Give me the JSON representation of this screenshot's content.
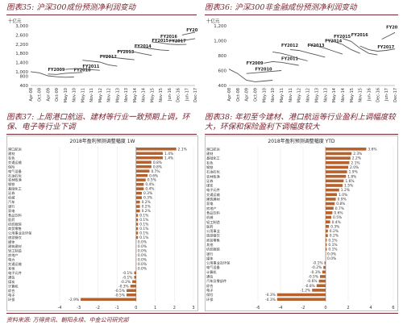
{
  "captions": {
    "c35": "图表35: 沪深300成份预测净利润变动",
    "c36": "图表36: 沪深300非金融成份预测净利润变动",
    "c37": "图表37: 上周港口航运、建材等行业一致预期上调，环保、电子等行业下调",
    "c38": "图表38: 年初至今建材、港口航运等行业盈利上调幅度较大，环保和保险盈利下调幅度较大"
  },
  "source": "资料来源: 万得资讯、朝阳永续、中金公司研究部",
  "colors": {
    "line": "#555555",
    "bar": "#b5622e",
    "caption": "#7a2430"
  },
  "chart_data": [
    {
      "type": "line",
      "unit_label": "十亿元",
      "ylim": [
        400,
        3000
      ],
      "yticks": [
        400,
        800,
        1000,
        1400,
        1800,
        2200,
        2600,
        3000
      ],
      "ytick_labels": [
        "400",
        "800",
        "1,000",
        "1,400",
        "1,800",
        "2,200",
        "2,600",
        "3,000"
      ],
      "xtick_labels": [
        "Apr-08",
        "Oct-08",
        "Apr-09",
        "Oct-09",
        "May-10",
        "Nov-10",
        "May-11",
        "Nov-11",
        "May-12",
        "Nov-12",
        "May-13",
        "Nov-13",
        "May-14",
        "Nov-14",
        "May-15",
        "Nov-15",
        "Jun-16",
        "Dec-16",
        "Jun-17",
        "Dec-17"
      ],
      "series": [
        {
          "name": "FY2009",
          "label_at": [
            2,
            1040
          ],
          "points": [
            [
              0,
              1000
            ],
            [
              1,
              950
            ],
            [
              2,
              820
            ],
            [
              3,
              780
            ],
            [
              4,
              760
            ],
            [
              5,
              770
            ]
          ]
        },
        {
          "name": "FY2010",
          "label_at": [
            5,
            1010
          ],
          "points": [
            [
              2,
              900
            ],
            [
              3,
              880
            ],
            [
              4,
              930
            ],
            [
              5,
              950
            ],
            [
              6,
              970
            ]
          ]
        },
        {
          "name": "FY2011",
          "label_at": [
            6,
            1180
          ],
          "points": [
            [
              4,
              1100
            ],
            [
              5,
              1130
            ],
            [
              6,
              1120
            ],
            [
              7,
              1090
            ],
            [
              8,
              1060
            ]
          ]
        },
        {
          "name": "FY2012",
          "label_at": [
            8,
            1600
          ],
          "points": [
            [
              6,
              1500
            ],
            [
              7,
              1460
            ],
            [
              8,
              1420
            ],
            [
              9,
              1300
            ],
            [
              10,
              1240
            ]
          ]
        },
        {
          "name": "FY2013",
          "label_at": [
            10,
            1800
          ],
          "points": [
            [
              8,
              1680
            ],
            [
              9,
              1660
            ],
            [
              10,
              1600
            ],
            [
              11,
              1560
            ],
            [
              12,
              1520
            ]
          ]
        },
        {
          "name": "FY2014",
          "label_at": [
            12,
            2050
          ],
          "points": [
            [
              10,
              1900
            ],
            [
              11,
              1920
            ],
            [
              12,
              1860
            ],
            [
              13,
              1780
            ],
            [
              14,
              1710
            ]
          ]
        },
        {
          "name": "FY2015",
          "label_at": [
            14,
            2300
          ],
          "points": [
            [
              12,
              2060
            ],
            [
              13,
              2050
            ],
            [
              14,
              2000
            ],
            [
              15,
              1950
            ],
            [
              16,
              1920
            ]
          ]
        },
        {
          "name": "FY2016",
          "label_at": [
            15,
            2480
          ],
          "points": [
            [
              14,
              2300
            ],
            [
              15,
              2260
            ],
            [
              16,
              2200
            ],
            [
              17,
              2180
            ],
            [
              18,
              2190
            ]
          ]
        },
        {
          "name": "FY2017",
          "label_at": [
            16,
            2280
          ],
          "points": [
            [
              16,
              2350
            ],
            [
              17,
              2330
            ],
            [
              18,
              2380
            ],
            [
              19,
              2440
            ]
          ]
        },
        {
          "name": "FY2018",
          "label_at": [
            18,
            2750
          ],
          "points": [
            [
              17.5,
              2600
            ],
            [
              18.5,
              2680
            ],
            [
              19,
              2720
            ]
          ]
        }
      ]
    },
    {
      "type": "line",
      "unit_label": "十亿元",
      "ylim": [
        400,
        1200
      ],
      "yticks": [
        400,
        600,
        800,
        1000,
        1200
      ],
      "ytick_labels": [
        "400",
        "600",
        "800",
        "1,000",
        "1,200"
      ],
      "xtick_labels": [
        "Apr-08",
        "Oct-08",
        "Apr-09",
        "Oct-09",
        "May-10",
        "Nov-10",
        "May-11",
        "Nov-11",
        "May-12",
        "Nov-12",
        "May-13",
        "Nov-13",
        "May-14",
        "Nov-14",
        "May-15",
        "Nov-15",
        "Jun-16",
        "Dec-16",
        "Jun-17",
        "Dec-17"
      ],
      "series": [
        {
          "name": "FY2009",
          "label_at": [
            2,
            680
          ],
          "points": [
            [
              0,
              620
            ],
            [
              1,
              560
            ],
            [
              2,
              470
            ],
            [
              3,
              450
            ],
            [
              4,
              460
            ],
            [
              5,
              470
            ]
          ]
        },
        {
          "name": "FY2010",
          "label_at": [
            3,
            600
          ],
          "points": [
            [
              2,
              560
            ],
            [
              3,
              570
            ],
            [
              4,
              580
            ],
            [
              5,
              590
            ],
            [
              6,
              600
            ]
          ]
        },
        {
          "name": "FY2011",
          "label_at": [
            6,
            740
          ],
          "points": [
            [
              4,
              700
            ],
            [
              5,
              720
            ],
            [
              6,
              710
            ],
            [
              7,
              690
            ],
            [
              8,
              670
            ]
          ]
        },
        {
          "name": "FY2012",
          "label_at": [
            6,
            920
          ],
          "points": [
            [
              5,
              850
            ],
            [
              6,
              830
            ],
            [
              7,
              800
            ],
            [
              8,
              760
            ],
            [
              9,
              730
            ]
          ]
        },
        {
          "name": "FY2013",
          "label_at": [
            9,
            920
          ],
          "points": [
            [
              7,
              880
            ],
            [
              8,
              870
            ],
            [
              9,
              840
            ],
            [
              10,
              810
            ],
            [
              11,
              780
            ]
          ]
        },
        {
          "name": "FY2014",
          "label_at": [
            11,
            980
          ],
          "points": [
            [
              9,
              940
            ],
            [
              10,
              930
            ],
            [
              11,
              900
            ],
            [
              12,
              860
            ],
            [
              13,
              820
            ]
          ]
        },
        {
          "name": "FY2015",
          "label_at": [
            12,
            1040
          ],
          "points": [
            [
              11,
              1010
            ],
            [
              12,
              990
            ],
            [
              13,
              950
            ],
            [
              14,
              880
            ],
            [
              15,
              830
            ]
          ]
        },
        {
          "name": "FY2016",
          "label_at": [
            14,
            1060
          ],
          "points": [
            [
              13,
              1030
            ],
            [
              14,
              990
            ],
            [
              15,
              900
            ],
            [
              16,
              830
            ],
            [
              17,
              810
            ]
          ]
        },
        {
          "name": "FY2017",
          "label_at": [
            17,
            900
          ],
          "points": [
            [
              15,
              930
            ],
            [
              16,
              880
            ],
            [
              17,
              860
            ],
            [
              18,
              870
            ],
            [
              19,
              890
            ]
          ]
        },
        {
          "name": "FY2018",
          "label_at": [
            18,
            1160
          ],
          "points": [
            [
              17.5,
              1020
            ],
            [
              18.5,
              1080
            ],
            [
              19,
              1110
            ]
          ]
        }
      ]
    },
    {
      "type": "bar",
      "orientation": "horizontal",
      "title": "2018年盈利预测调整幅度 1W",
      "xlim": [
        -4,
        3
      ],
      "xticks": [
        -4,
        -3,
        -2,
        -1,
        0,
        1,
        2,
        3
      ],
      "categories": [
        "港口航运",
        "建材",
        "有色",
        "交通运输",
        "保险",
        "电气设备",
        "石油石化",
        "农林牧渔",
        "钢铁",
        "基础化工",
        "证券",
        "机械",
        "汽车",
        "银行",
        "家电",
        "食品饮料",
        "医药",
        "纺织服装",
        "商贸零售",
        "公用事业及环保",
        "旅游餐饮",
        "媒体",
        "建筑建材",
        "轻工制造",
        "房地产",
        "电力",
        "交通运输",
        "其他",
        "电子元件",
        "通信",
        "煤炭",
        "计算机",
        "综合",
        "电子",
        "环保"
      ],
      "values": [
        2.1,
        1.4,
        1.4,
        0.8,
        0.8,
        0.7,
        0.6,
        0.5,
        0.4,
        0.4,
        0.3,
        0.3,
        0.2,
        0.2,
        0.2,
        0.1,
        0.1,
        0.1,
        0.1,
        0.1,
        0.1,
        0.0,
        0.0,
        0.0,
        0.0,
        0.0,
        0.0,
        0.0,
        -0.1,
        -0.1,
        -0.2,
        -0.3,
        -0.5,
        -0.5,
        -2.9
      ],
      "data_labels": [
        "2.1%",
        "1.4%",
        "1.4%",
        "0.8%",
        "0.8%",
        "0.7%",
        "0.6%",
        "0.5%",
        "0.4%",
        "0.4%",
        "0.3%",
        "0.3%",
        "0.2%",
        "0.2%",
        "0.2%",
        "0.1%",
        "0.1%",
        "0.1%",
        "0.1%",
        "0.1%",
        "0.1%",
        "0.0%",
        "0.0%",
        "0.0%",
        "0.0%",
        "0.0%",
        "0.0%",
        "0.0%",
        "-0.1%",
        "-0.1%",
        "-0.2%",
        "-0.3%",
        "-0.5%",
        "-0.5%",
        "-2.9%"
      ]
    },
    {
      "type": "bar",
      "orientation": "horizontal",
      "title": "2018年盈利预测调整幅度 YTD",
      "xlim": [
        -6,
        6
      ],
      "xticks": [
        -6,
        -4,
        -2,
        0,
        2,
        4,
        6
      ],
      "categories": [
        "港口航运",
        "建材",
        "基础化工",
        "有色",
        "钢铁",
        "石油石化",
        "农林牧渔",
        "证券",
        "煤炭",
        "电子元件",
        "交通运输",
        "建筑建材",
        "家电",
        "房地产",
        "食品饮料",
        "机械",
        "轻工制造",
        "医药",
        "公用事业",
        "旅游餐饮",
        "商贸零售",
        "其他",
        "纺织服装",
        "银行",
        "媒体",
        "公用事业及环保",
        "电气设备",
        "计算机",
        "通信",
        "汽车及零部件",
        "综合",
        "电子",
        "保险",
        "环保"
      ],
      "values": [
        3.6,
        2.3,
        2.2,
        2.1,
        2.0,
        1.9,
        1.8,
        1.6,
        1.5,
        1.2,
        1.0,
        0.9,
        0.8,
        0.7,
        0.6,
        0.5,
        0.4,
        0.3,
        0.2,
        0.2,
        0.1,
        0.1,
        0.1,
        0.0,
        0.0,
        -0.1,
        -0.2,
        -0.3,
        -0.5,
        -0.6,
        -0.8,
        -1.2,
        -4.3,
        -4.3
      ],
      "data_labels": [
        "3.6%",
        "2.3%",
        "2.2%",
        "2.1%",
        "2.0%",
        "1.9%",
        "1.8%",
        "1.6%",
        "1.5%",
        "1.2%",
        "1.0%",
        "0.9%",
        "0.8%",
        "0.7%",
        "0.6%",
        "0.5%",
        "0.4%",
        "0.3%",
        "0.2%",
        "0.2%",
        "0.1%",
        "0.1%",
        "0.1%",
        "0.0%",
        "0.0%",
        "-0.1%",
        "-0.2%",
        "-0.3%",
        "-0.5%",
        "-0.6%",
        "-0.8%",
        "-1.2%",
        "-4.3%",
        "-4.3%"
      ]
    }
  ]
}
